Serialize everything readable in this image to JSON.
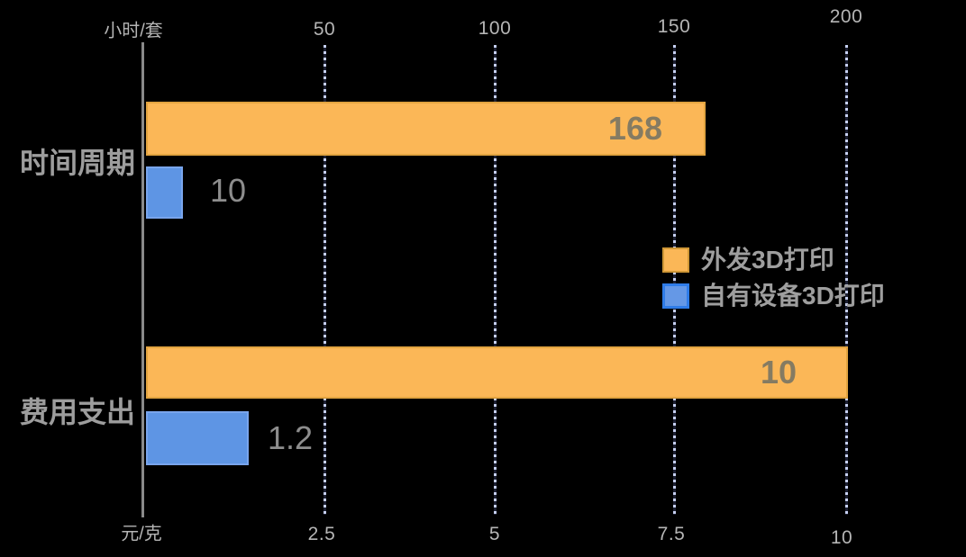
{
  "chart_data": {
    "type": "bar",
    "orientation": "horizontal",
    "background_color": "#000000",
    "categories": [
      "时间周期",
      "费用支出"
    ],
    "series": [
      {
        "name": "外发3D打印",
        "color": "#fbb757",
        "values": [
          168,
          10
        ],
        "value_labels": [
          "168",
          "10"
        ]
      },
      {
        "name": "自有设备3D打印",
        "color": "#5e95e4",
        "values": [
          10,
          1.2
        ],
        "value_labels": [
          "10",
          "1.2"
        ]
      }
    ],
    "top_axis": {
      "unit": "小时/套",
      "applies_to": "时间周期",
      "range": [
        0,
        200
      ],
      "tick_labels": [
        "50",
        "100",
        "150",
        "200"
      ]
    },
    "bottom_axis": {
      "unit": "元/克",
      "applies_to": "费用支出",
      "range": [
        0,
        10
      ],
      "tick_labels": [
        "2.5",
        "5",
        "7.5",
        "10"
      ]
    },
    "grid": {
      "style": "dotted",
      "orientation": "vertical",
      "color": "#c6d0f1"
    },
    "legend": {
      "position": "center-right",
      "entries": [
        "外发3D打印",
        "自有设备3D打印"
      ]
    },
    "text_colors": {
      "tick": "#b5b5b5",
      "category": "#9d9d9d",
      "value_inside_bar": "#857b62",
      "value_outside_bar": "#8d8d8d",
      "legend": "#9e9e9e"
    }
  }
}
